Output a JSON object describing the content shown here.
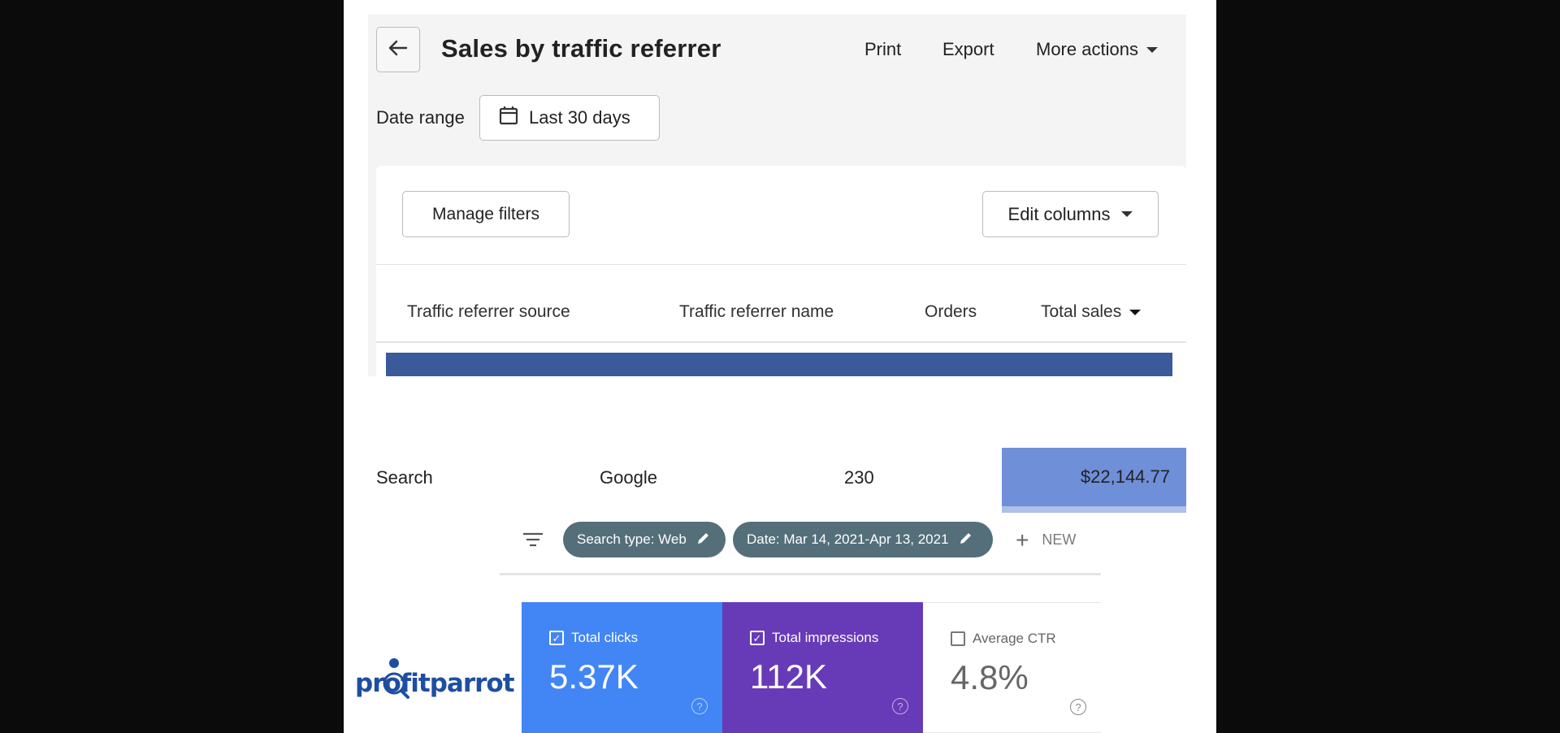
{
  "report": {
    "title": "Sales by traffic referrer",
    "actions": {
      "print": "Print",
      "export": "Export",
      "more": "More actions"
    },
    "date_range_label": "Date range",
    "date_range_value": "Last 30 days",
    "manage_filters": "Manage filters",
    "edit_columns": "Edit columns",
    "columns": [
      "Traffic referrer source",
      "Traffic referrer name",
      "Orders",
      "Total sales"
    ],
    "rows": [
      {
        "source": "Search",
        "name": "Google",
        "orders": "230",
        "total_sales": "$22,144.77"
      }
    ],
    "highlight_color": "#e53935"
  },
  "search_console": {
    "chips": [
      "Search type: Web",
      "Date: Mar 14, 2021-Apr 13, 2021"
    ],
    "new_label": "NEW",
    "metrics": [
      {
        "label": "Total clicks",
        "value": "5.37K",
        "checked": true,
        "color": "#4285f4"
      },
      {
        "label": "Total impressions",
        "value": "112K",
        "checked": true,
        "color": "#673ab7"
      },
      {
        "label": "Average CTR",
        "value": "4.8%",
        "checked": false,
        "color": "#ffffff"
      }
    ],
    "help_glyph": "?"
  },
  "logo": {
    "text": "profitparrot"
  }
}
